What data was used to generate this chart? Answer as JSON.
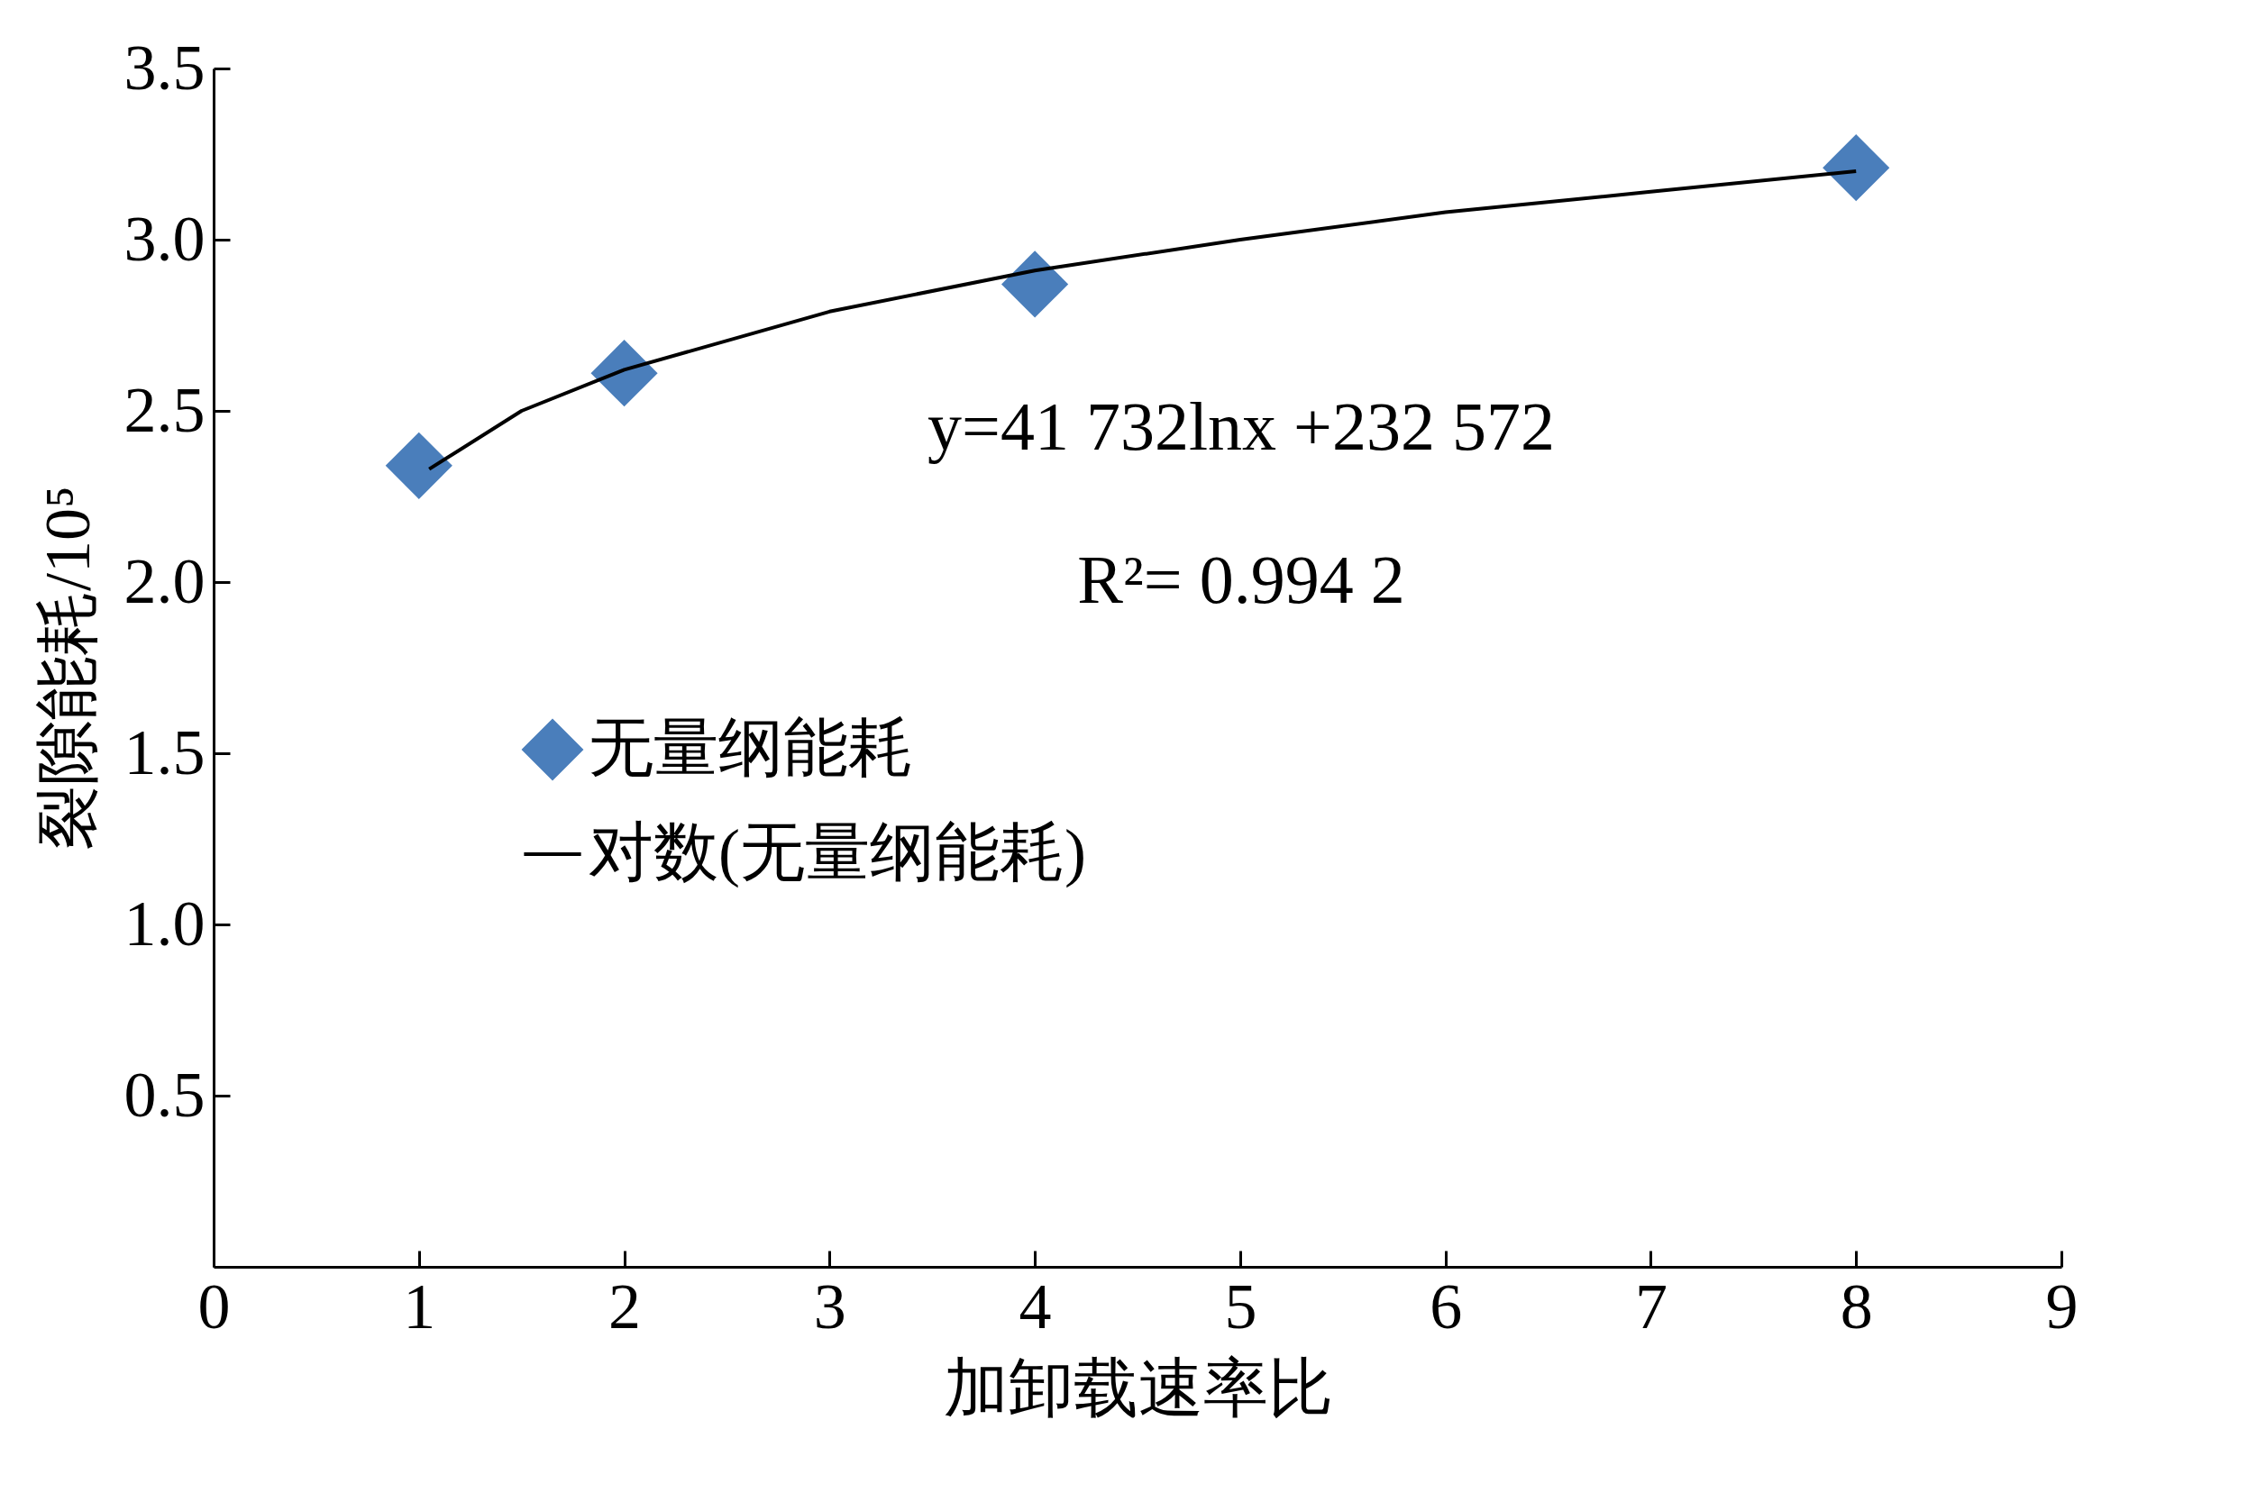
{
  "chart_data": {
    "type": "scatter",
    "xlabel": "加卸载速率比",
    "ylabel": "裂隙能耗/10⁵",
    "x": [
      1,
      2,
      4,
      8
    ],
    "xlim": [
      0,
      9
    ],
    "xticks": [
      0,
      1,
      2,
      3,
      4,
      5,
      6,
      7,
      8,
      9
    ],
    "ylim": [
      0,
      3.5
    ],
    "yticks": [
      0.5,
      {
        "value": 1,
        "label": "1.0"
      },
      1.5,
      {
        "value": 2,
        "label": "2.0"
      },
      2.5,
      {
        "value": 3,
        "label": "3.0"
      },
      3.5
    ],
    "series": [
      {
        "name": "无量纲能耗",
        "color": "#4a7ebb",
        "marker": "diamond",
        "values": [
          2.34,
          2.61,
          2.87,
          3.21
        ]
      },
      {
        "name": "对数(无量纲能耗)",
        "type": "line",
        "color": "#000000",
        "x": [
          1.05,
          1.5,
          2,
          3,
          4,
          5,
          6,
          7,
          8
        ],
        "values": [
          2.33,
          2.5,
          2.62,
          2.79,
          2.91,
          3.0,
          3.08,
          3.14,
          3.2
        ]
      }
    ],
    "annotations": [
      "y=41 732lnx +232 572",
      "R²= 0.994 2"
    ],
    "legend": "bottom left",
    "grid": false
  }
}
